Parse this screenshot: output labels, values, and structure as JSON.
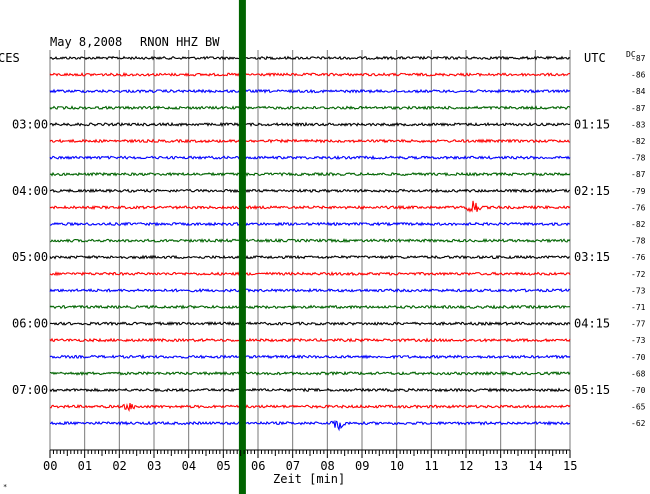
{
  "header": {
    "date": "May 8,2008",
    "station": "RNON HHZ BW",
    "left_label": "CES",
    "right_label": "UTC",
    "dc_label": "DC"
  },
  "chart_data": {
    "type": "line",
    "title": "May 8,2008  RNON HHZ BW",
    "xlabel": "Zeit [min]",
    "x_ticks": [
      "00",
      "01",
      "02",
      "03",
      "04",
      "05",
      "06",
      "07",
      "08",
      "09",
      "10",
      "11",
      "12",
      "13",
      "14",
      "15"
    ],
    "xlim": [
      0,
      15
    ],
    "row_colors": [
      "#000000",
      "#ff0000",
      "#0000ff",
      "#006400"
    ],
    "left_time_labels": [
      {
        "row": 4,
        "text": "03:00"
      },
      {
        "row": 8,
        "text": "04:00"
      },
      {
        "row": 12,
        "text": "05:00"
      },
      {
        "row": 16,
        "text": "06:00"
      },
      {
        "row": 20,
        "text": "07:00"
      }
    ],
    "right_time_labels": [
      {
        "row": 4,
        "text": "01:15"
      },
      {
        "row": 8,
        "text": "02:15"
      },
      {
        "row": 12,
        "text": "03:15"
      },
      {
        "row": 16,
        "text": "04:15"
      },
      {
        "row": 20,
        "text": "05:15"
      }
    ],
    "dc_offsets": [
      "-87",
      "-86",
      "-84",
      "-87",
      "-83",
      "-82",
      "-78",
      "-87",
      "-79",
      "-76",
      "-82",
      "-78",
      "-76",
      "-72",
      "-73",
      "-71",
      "-77",
      "-73",
      "-70",
      "-68",
      "-70",
      "-65",
      "-62"
    ],
    "marker": {
      "x_min": 5.55,
      "color": "#006400"
    },
    "events": [
      {
        "row": 9,
        "x_min": 12.2,
        "amplitude": 8
      },
      {
        "row": 21,
        "x_min": 2.3,
        "amplitude": 3
      },
      {
        "row": 22,
        "x_min": 8.3,
        "amplitude": 6
      }
    ]
  },
  "footer": {
    "corner_mark": "*"
  }
}
